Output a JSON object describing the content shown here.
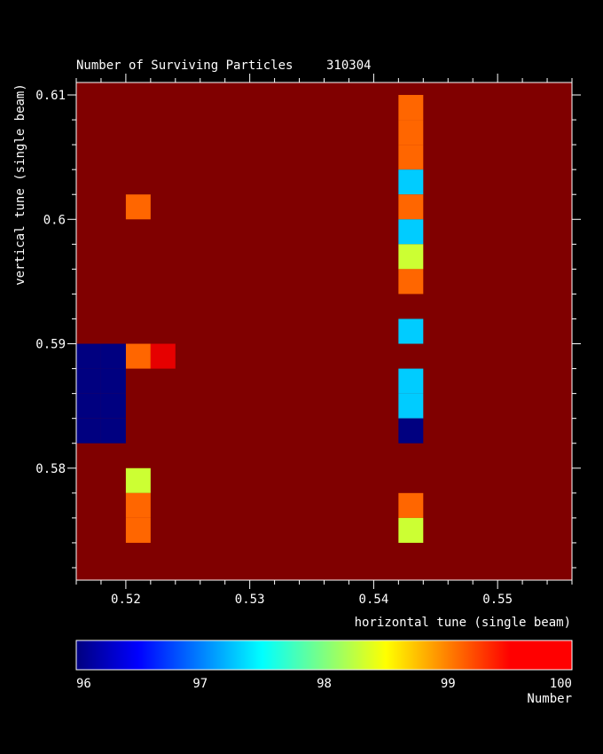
{
  "chart_data": {
    "type": "heatmap",
    "title": "Number of Surviving Particles",
    "run_id": "310304",
    "xlabel": "horizontal tune (single beam)",
    "ylabel": "vertical tune (single beam)",
    "xlim": [
      0.516,
      0.556
    ],
    "ylim": [
      0.571,
      0.611
    ],
    "x_ticks": [
      "0.52",
      "0.53",
      "0.54",
      "0.55"
    ],
    "y_ticks": [
      "0.58",
      "0.59",
      "0.6",
      "0.61"
    ],
    "x_tick_values": [
      0.52,
      0.53,
      0.54,
      0.55
    ],
    "y_tick_values": [
      0.58,
      0.59,
      0.6,
      0.61
    ],
    "cell_size": 0.002,
    "background_value": 100,
    "cells": [
      {
        "x": 0.52,
        "y": 0.6,
        "value": 99.1
      },
      {
        "x": 0.52,
        "y": 0.588,
        "value": 99.1
      },
      {
        "x": 0.522,
        "y": 0.588,
        "value": 99.6
      },
      {
        "x": 0.52,
        "y": 0.578,
        "value": 98.3
      },
      {
        "x": 0.52,
        "y": 0.576,
        "value": 99.1
      },
      {
        "x": 0.52,
        "y": 0.574,
        "value": 99.1
      },
      {
        "x": 0.516,
        "y": 0.588,
        "value": 96
      },
      {
        "x": 0.518,
        "y": 0.588,
        "value": 96
      },
      {
        "x": 0.516,
        "y": 0.586,
        "value": 96
      },
      {
        "x": 0.518,
        "y": 0.586,
        "value": 96
      },
      {
        "x": 0.516,
        "y": 0.584,
        "value": 96
      },
      {
        "x": 0.518,
        "y": 0.584,
        "value": 96
      },
      {
        "x": 0.516,
        "y": 0.582,
        "value": 96
      },
      {
        "x": 0.518,
        "y": 0.582,
        "value": 96
      },
      {
        "x": 0.542,
        "y": 0.608,
        "value": 99.1
      },
      {
        "x": 0.542,
        "y": 0.606,
        "value": 99.1
      },
      {
        "x": 0.542,
        "y": 0.604,
        "value": 99.1
      },
      {
        "x": 0.542,
        "y": 0.602,
        "value": 97.3
      },
      {
        "x": 0.542,
        "y": 0.6,
        "value": 99.1
      },
      {
        "x": 0.542,
        "y": 0.598,
        "value": 97.3
      },
      {
        "x": 0.542,
        "y": 0.596,
        "value": 98.3
      },
      {
        "x": 0.542,
        "y": 0.594,
        "value": 99.1
      },
      {
        "x": 0.542,
        "y": 0.59,
        "value": 97.3
      },
      {
        "x": 0.542,
        "y": 0.586,
        "value": 97.3
      },
      {
        "x": 0.542,
        "y": 0.584,
        "value": 97.3
      },
      {
        "x": 0.542,
        "y": 0.582,
        "value": 96
      },
      {
        "x": 0.542,
        "y": 0.576,
        "value": 99.1
      },
      {
        "x": 0.542,
        "y": 0.574,
        "value": 98.3
      }
    ],
    "colorbar": {
      "label": "Number",
      "min": 96,
      "max": 100,
      "ticks": [
        "96",
        "97",
        "98",
        "99",
        "100"
      ],
      "tick_values": [
        96,
        97,
        98,
        99,
        100
      ]
    },
    "colormap": "jet",
    "background_color": "#000000"
  }
}
